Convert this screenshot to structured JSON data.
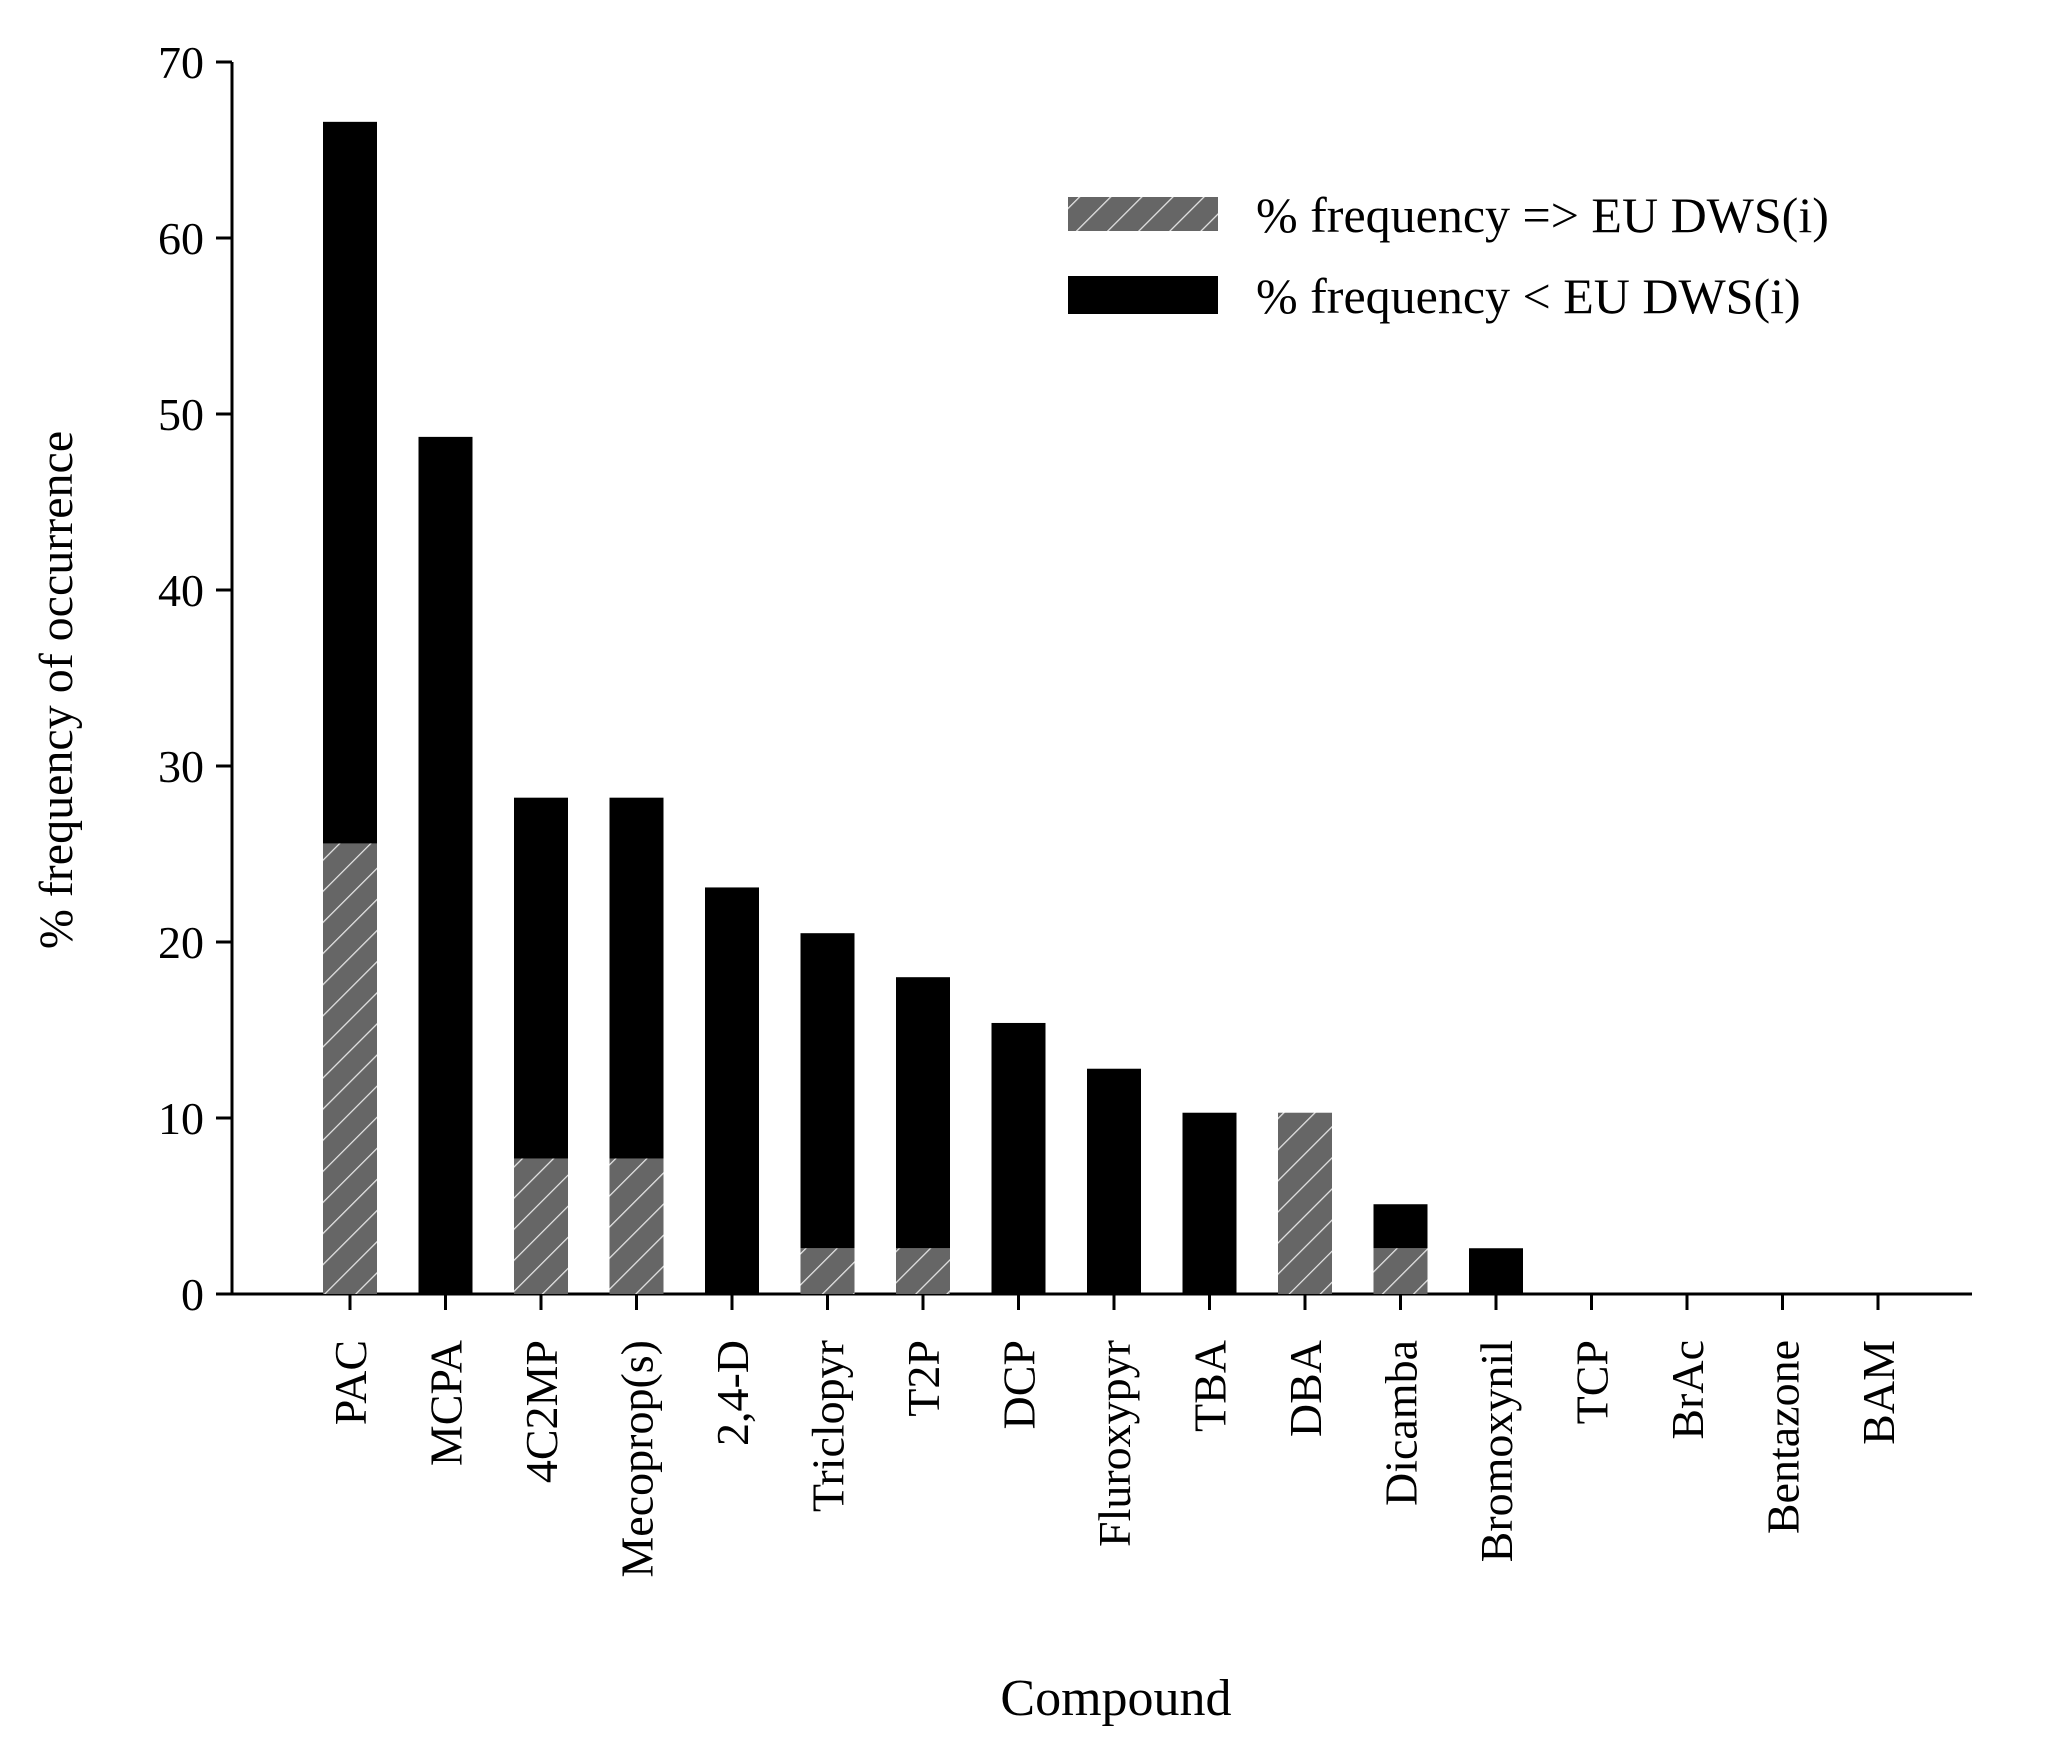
{
  "chart_data": {
    "type": "bar",
    "stacked": true,
    "title": "",
    "xlabel": "Compound",
    "ylabel": "% frequency of occurrence",
    "ylim": [
      0,
      70
    ],
    "yticks": [
      0,
      10,
      20,
      30,
      40,
      50,
      60,
      70
    ],
    "legend_position": "top-right",
    "categories": [
      "PAC",
      "MCPA",
      "4C2MP",
      "Mecoprop(s)",
      "2,4-D",
      "Triclopyr",
      "T2P",
      "DCP",
      "Fluroxypyr",
      "TBA",
      "DBA",
      "Dicamba",
      "Bromoxynil",
      "TCP",
      "BrAc",
      "Bentazone",
      "BAM"
    ],
    "series": [
      {
        "name": "% frequency => EU DWS(i)",
        "color": "#666666",
        "pattern": "hatched",
        "values": [
          25.6,
          0,
          7.7,
          7.7,
          0,
          2.6,
          2.6,
          0,
          0,
          0,
          10.3,
          2.6,
          0,
          0,
          0,
          0,
          0
        ]
      },
      {
        "name": "% frequency < EU DWS(i)",
        "color": "#000000",
        "pattern": "solid",
        "values": [
          41.0,
          48.7,
          20.5,
          20.5,
          23.1,
          17.9,
          15.4,
          15.4,
          12.8,
          10.3,
          0,
          2.5,
          2.6,
          0,
          0,
          0,
          0
        ]
      }
    ]
  }
}
